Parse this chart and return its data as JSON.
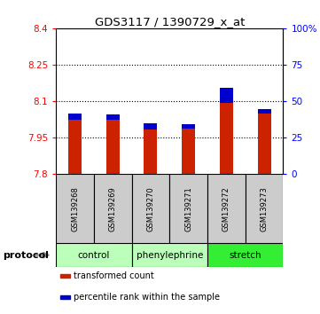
{
  "title": "GDS3117 / 1390729_x_at",
  "samples": [
    "GSM139268",
    "GSM139269",
    "GSM139270",
    "GSM139271",
    "GSM139272",
    "GSM139273"
  ],
  "red_values": [
    8.025,
    8.025,
    7.985,
    7.987,
    8.155,
    8.05
  ],
  "blue_values": [
    8.048,
    8.046,
    8.008,
    8.005,
    8.095,
    8.068
  ],
  "ylim": [
    7.8,
    8.4
  ],
  "yticks_left": [
    7.8,
    7.95,
    8.1,
    8.25,
    8.4
  ],
  "ytick_labels_left": [
    "7.8",
    "7.95",
    "8.1",
    "8.25",
    "8.4"
  ],
  "ytick_labels_right": [
    "0",
    "25",
    "50",
    "75",
    "100%"
  ],
  "bar_width": 0.35,
  "red_color": "#cc2200",
  "blue_color": "#0000cc",
  "background_color": "#ffffff",
  "label_area_color": "#cccccc",
  "group_boundaries": [
    {
      "start": 0,
      "end": 1,
      "label": "control",
      "color": "#bbffbb"
    },
    {
      "start": 2,
      "end": 3,
      "label": "phenylephrine",
      "color": "#bbffbb"
    },
    {
      "start": 4,
      "end": 5,
      "label": "stretch",
      "color": "#33ee33"
    }
  ],
  "legend_items": [
    {
      "color": "#cc2200",
      "label": "transformed count"
    },
    {
      "color": "#0000cc",
      "label": "percentile rank within the sample"
    }
  ]
}
